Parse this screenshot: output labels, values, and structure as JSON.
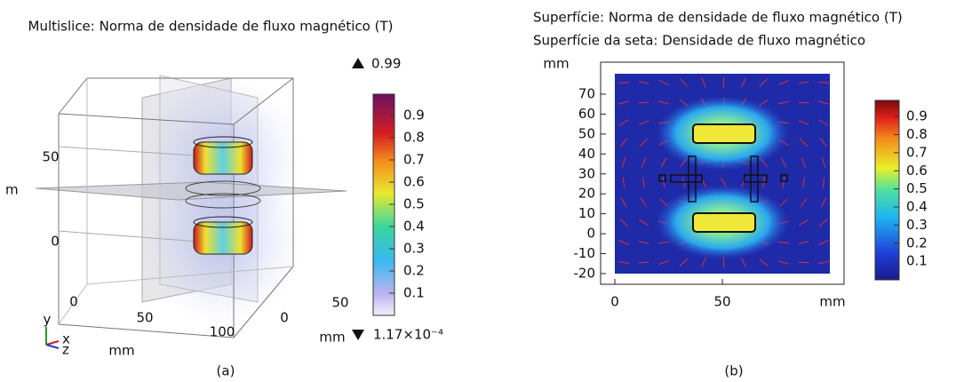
{
  "panel_a": {
    "title": "Multislice: Norma de densidade de fluxo magnético (T)",
    "max_label": "0.99",
    "min_label": "1.17×10⁻⁴",
    "colorbar_ticks": [
      0.9,
      0.8,
      0.7,
      0.6,
      0.5,
      0.4,
      0.3,
      0.2,
      0.1
    ],
    "z_ticks": [
      50,
      0
    ],
    "z_unit": "m",
    "x_ticks": [
      0,
      50,
      100
    ],
    "x_unit": "mm",
    "y_ticks": [
      0,
      50
    ],
    "y_unit": "mm",
    "triad": [
      "y",
      "x",
      "z"
    ],
    "caption": "(a)"
  },
  "panel_b": {
    "title_lines": [
      "Superfície: Norma de densidade de fluxo magnético (T)",
      "Superfície da seta: Densidade de fluxo magnético"
    ],
    "y_unit": "mm",
    "y_ticks": [
      70,
      60,
      50,
      40,
      30,
      20,
      10,
      0,
      -10,
      -20
    ],
    "x_ticks": [
      0,
      50
    ],
    "x_unit": "mm",
    "colorbar_ticks": [
      0.9,
      0.8,
      0.7,
      0.6,
      0.5,
      0.4,
      0.3,
      0.2,
      0.1
    ],
    "caption": "(b)"
  }
}
